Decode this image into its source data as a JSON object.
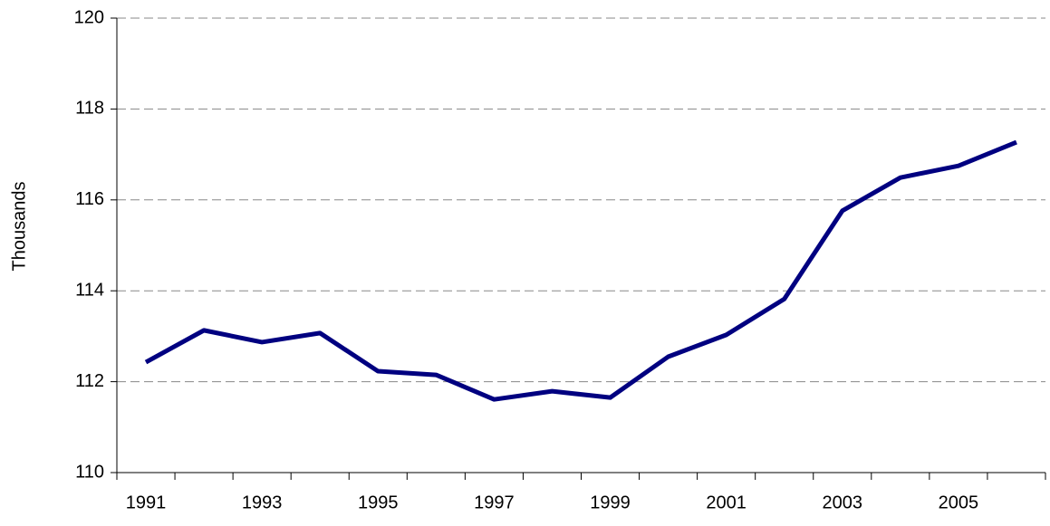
{
  "chart_data": {
    "type": "line",
    "y_label": "Thousands",
    "categories": [
      "1991",
      null,
      "1993",
      null,
      "1995",
      null,
      "1997",
      null,
      "1999",
      null,
      "2001",
      null,
      "2003",
      null,
      "2005",
      null
    ],
    "series": [
      {
        "name": "Thousands",
        "color": "#000080",
        "values": [
          112.43,
          113.13,
          112.87,
          113.07,
          112.23,
          112.15,
          111.61,
          111.79,
          111.65,
          112.55,
          113.03,
          113.82,
          115.76,
          116.49,
          116.75,
          117.27
        ]
      }
    ],
    "ylim": [
      110,
      120
    ],
    "yticks": [
      110,
      112,
      114,
      116,
      118,
      120
    ],
    "grid": true
  }
}
